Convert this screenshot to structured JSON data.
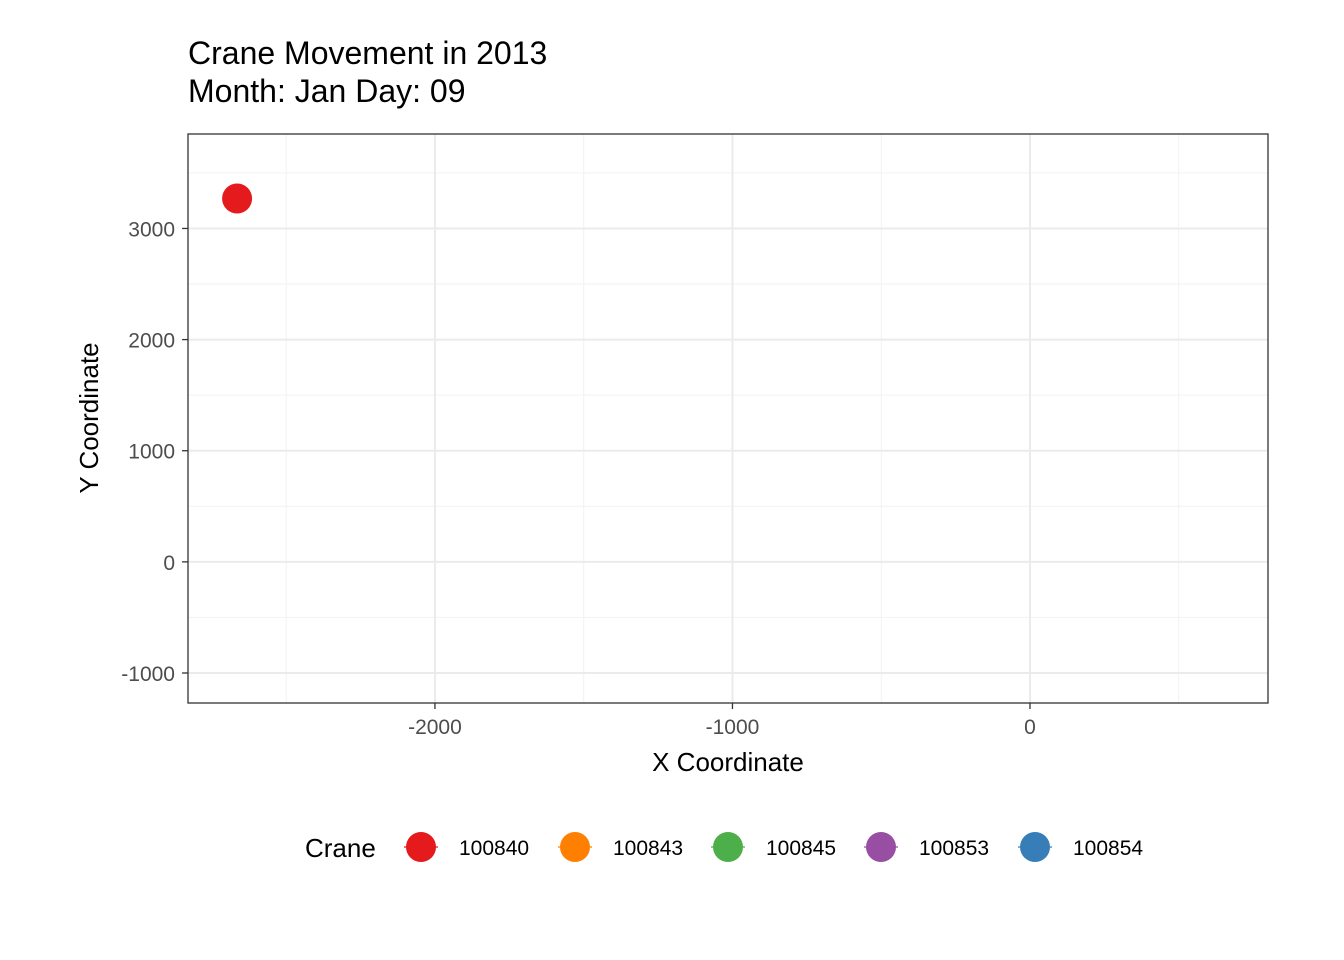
{
  "chart_data": {
    "type": "scatter",
    "title": "Crane Movement in 2013",
    "subtitle": "Month: Jan Day: 09",
    "xlabel": "X Coordinate",
    "ylabel": "Y Coordinate",
    "xlim": [
      -2830,
      800
    ],
    "ylim": [
      -1270,
      3850
    ],
    "x_ticks": [
      -2000,
      -1000,
      0
    ],
    "x_tick_labels": [
      "-2000",
      "-1000",
      "0"
    ],
    "y_ticks": [
      -1000,
      0,
      1000,
      2000,
      3000
    ],
    "y_tick_labels": [
      "-1000",
      "0",
      "1000",
      "2000",
      "3000"
    ],
    "grid": true,
    "legend": {
      "title": "Crane",
      "position": "bottom",
      "entries": [
        {
          "name": "100840",
          "color": "#e41a1c"
        },
        {
          "name": "100843",
          "color": "#ff7f00"
        },
        {
          "name": "100845",
          "color": "#4daf4a"
        },
        {
          "name": "100853",
          "color": "#984ea3"
        },
        {
          "name": "100854",
          "color": "#377eb8"
        }
      ]
    },
    "series": [
      {
        "name": "100840",
        "color": "#e41a1c",
        "points": [
          {
            "x": -2665,
            "y": 3270
          }
        ]
      }
    ]
  }
}
